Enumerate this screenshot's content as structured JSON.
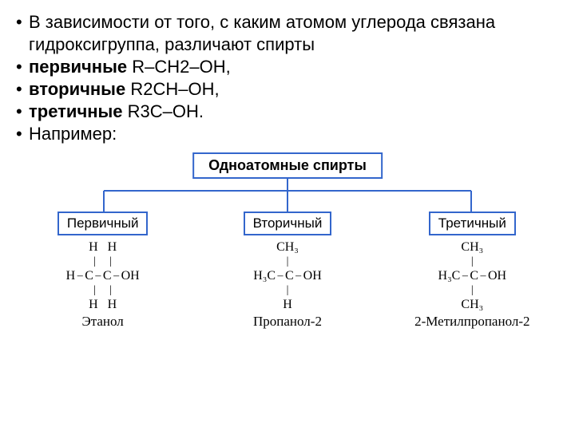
{
  "text": {
    "intro": "В зависимости от того, с каким атомом углерода связана гидроксигруппа, различают спирты",
    "primary_label": "первичные",
    "primary_formula": "R–CH2–OH,",
    "secondary_label": "вторичные",
    "secondary_formula": "R2CH–OH,",
    "tertiary_label": "третичные",
    "tertiary_formula": "R3C–OH.",
    "example": "Например:"
  },
  "diagram": {
    "title": "Одноатомные спирты",
    "border_color": "#3366cc",
    "connector_color": "#3366cc",
    "categories": [
      {
        "label": "Первичный",
        "compound_name": "Этанол",
        "rows": [
          {
            "cells": [
              "",
              "H",
              "",
              "H",
              ""
            ]
          },
          {
            "cells": [
              "",
              "|",
              "",
              "|",
              ""
            ]
          },
          {
            "cells": [
              "H",
              "–",
              "C",
              "–",
              "C",
              "–",
              "OH"
            ]
          },
          {
            "cells": [
              "",
              "|",
              "",
              "|",
              ""
            ]
          },
          {
            "cells": [
              "",
              "H",
              "",
              "H",
              ""
            ]
          }
        ]
      },
      {
        "label": "Вторичный",
        "compound_name": "Пропанол-2",
        "rows": [
          {
            "cells": [
              "",
              "CH₃",
              ""
            ]
          },
          {
            "cells": [
              "",
              "|",
              ""
            ]
          },
          {
            "cells": [
              "H₃C",
              "–",
              "C",
              "–",
              "OH"
            ]
          },
          {
            "cells": [
              "",
              "|",
              ""
            ]
          },
          {
            "cells": [
              "",
              "H",
              ""
            ]
          }
        ]
      },
      {
        "label": "Третичный",
        "compound_name": "2-Метилпропанол-2",
        "rows": [
          {
            "cells": [
              "",
              "CH₃",
              ""
            ]
          },
          {
            "cells": [
              "",
              "|",
              ""
            ]
          },
          {
            "cells": [
              "H₃C",
              "–",
              "C",
              "–",
              "OH"
            ]
          },
          {
            "cells": [
              "",
              "|",
              ""
            ]
          },
          {
            "cells": [
              "",
              "CH₃",
              ""
            ]
          }
        ]
      }
    ]
  },
  "style": {
    "text_font_size": 22,
    "box_font_size": 18,
    "formula_font_size": 16,
    "background": "#ffffff",
    "text_color": "#000000"
  }
}
